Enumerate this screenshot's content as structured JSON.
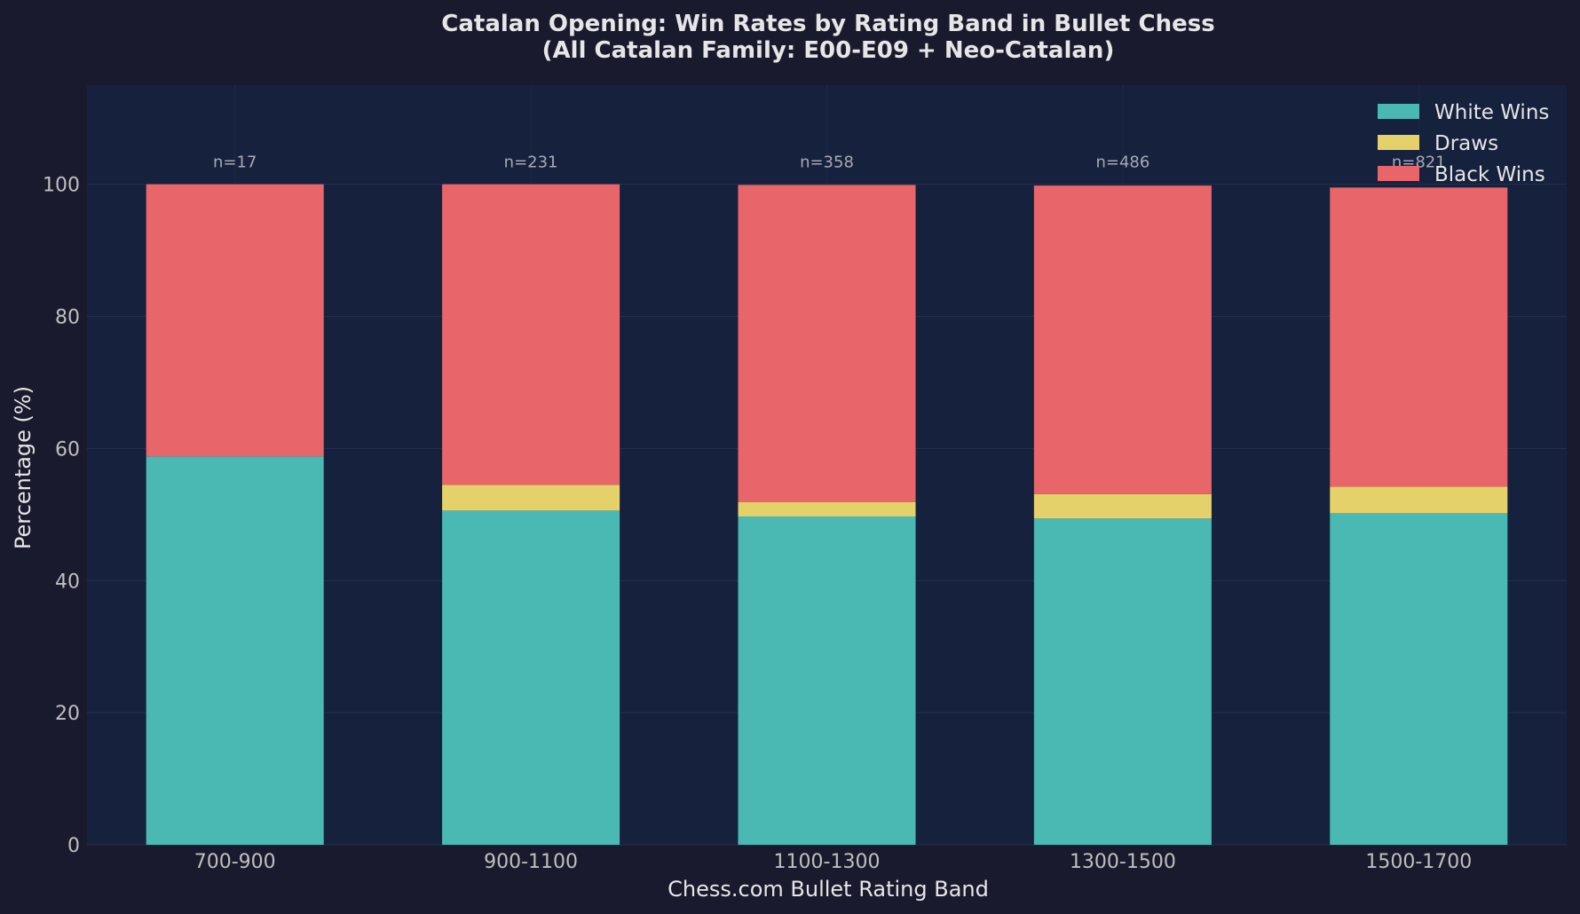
{
  "chart_data": {
    "type": "bar",
    "stacked": true,
    "title_line1": "Catalan Opening: Win Rates by Rating Band in Bullet Chess",
    "title_line2": "(All Catalan Family: E00-E09 + Neo-Catalan)",
    "xlabel": "Chess.com Bullet Rating Band",
    "ylabel": "Percentage (%)",
    "ylim": [
      0,
      115
    ],
    "yticks": [
      "0",
      "20",
      "40",
      "60",
      "80",
      "100"
    ],
    "categories": [
      "700-900",
      "900-1100",
      "1100-1300",
      "1300-1500",
      "1500-1700"
    ],
    "sample_labels": [
      "n=17",
      "n=231",
      "n=358",
      "n=486",
      "n=821"
    ],
    "series": [
      {
        "name": "White Wins",
        "values": [
          58.8,
          50.6,
          49.7,
          49.4,
          50.2
        ],
        "color": "#4ab9b4"
      },
      {
        "name": "Draws",
        "values": [
          0.0,
          3.9,
          2.2,
          3.7,
          4.0
        ],
        "color": "#e5d169"
      },
      {
        "name": "Black Wins",
        "values": [
          41.2,
          45.5,
          48.0,
          46.7,
          45.3
        ],
        "color": "#e8666a"
      }
    ],
    "grid": true,
    "legend_position": "top-right",
    "background_color": "#1a1a2e",
    "plot_background_color": "#16213e"
  }
}
